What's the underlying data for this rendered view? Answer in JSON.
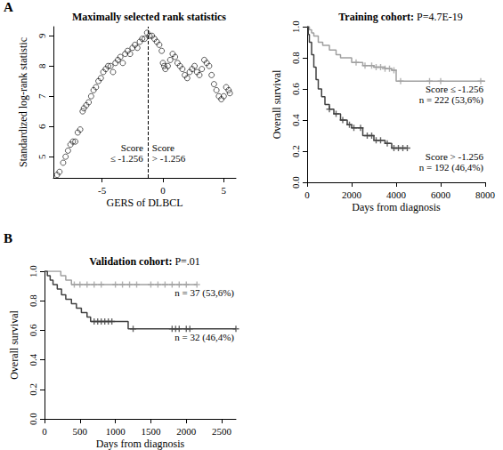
{
  "chart_data": [
    {
      "panel": "A",
      "type": "scatter",
      "title": "Maximally selected rank statistics",
      "x_label": "GERS of DLBCL",
      "y_label": "Standardized log-rank statistic",
      "x": [
        -8.7,
        -8.5,
        -8.2,
        -8.0,
        -7.8,
        -7.6,
        -7.4,
        -7.2,
        -7.0,
        -6.8,
        -6.6,
        -6.5,
        -6.3,
        -6.1,
        -5.9,
        -5.7,
        -5.5,
        -5.3,
        -5.1,
        -4.9,
        -4.7,
        -4.5,
        -4.3,
        -4.1,
        -3.9,
        -3.7,
        -3.5,
        -3.3,
        -3.1,
        -2.9,
        -2.7,
        -2.5,
        -2.3,
        -2.1,
        -1.9,
        -1.7,
        -1.5,
        -1.3,
        -1.1,
        -0.9,
        -0.7,
        -0.5,
        -0.3,
        -0.1,
        0.0,
        0.1,
        0.2,
        0.4,
        0.6,
        0.8,
        1.0,
        1.2,
        1.4,
        1.6,
        1.8,
        2.0,
        2.2,
        2.4,
        2.6,
        2.8,
        3.0,
        3.2,
        3.4,
        3.6,
        3.8,
        4.0,
        4.2,
        4.4,
        4.6,
        4.8,
        5.0,
        5.2,
        5.4,
        5.5
      ],
      "values": [
        4.4,
        4.5,
        4.8,
        5.0,
        5.2,
        5.4,
        5.5,
        5.5,
        5.8,
        5.9,
        6.5,
        6.6,
        6.7,
        6.8,
        7.0,
        7.2,
        7.3,
        7.5,
        7.6,
        7.8,
        7.9,
        8.0,
        8.0,
        7.8,
        8.1,
        8.2,
        8.3,
        8.1,
        8.4,
        8.5,
        8.4,
        8.6,
        8.7,
        8.6,
        8.8,
        8.9,
        8.9,
        9.1,
        9.0,
        9.0,
        8.9,
        8.8,
        8.7,
        8.5,
        8.1,
        8.0,
        7.9,
        8.0,
        8.2,
        8.4,
        8.3,
        8.1,
        8.0,
        7.9,
        7.7,
        7.6,
        7.8,
        7.9,
        8.0,
        7.8,
        7.7,
        7.9,
        8.2,
        8.1,
        8.0,
        7.7,
        7.4,
        7.2,
        7.0,
        6.9,
        7.0,
        7.3,
        7.2,
        7.1
      ],
      "color": "#000000",
      "marker": "circle",
      "xlim": [
        -9,
        6
      ],
      "xticks": [
        -5,
        0,
        5
      ],
      "ylim": [
        4.3,
        9.3
      ],
      "yticks": [
        5,
        6,
        7,
        8,
        9
      ],
      "cutoff": -1.256,
      "annotations": [
        "Score\n≤ -1.256",
        "Score\n> -1.256"
      ]
    },
    {
      "type": "line",
      "title": "Training cohort: P=4.7E-19",
      "x_label": "Days from diagnosis",
      "y_label": "Overall survival",
      "xlim": [
        0,
        8000
      ],
      "xticks": [
        0,
        2000,
        4000,
        6000,
        8000
      ],
      "ylim": [
        0,
        1
      ],
      "yticks": [
        {
          "value": 0,
          "label": "0.0"
        },
        {
          "value": 0.2,
          "label": "0.2"
        },
        {
          "value": 0.4,
          "label": "0.4"
        },
        {
          "value": 0.6,
          "label": "0.6"
        },
        {
          "value": 0.8,
          "label": "0.8"
        },
        {
          "value": 1,
          "label": "1.0"
        }
      ],
      "series": [
        {
          "name": "Score ≤ -1.256\nn = 222 (53,6%)",
          "color": "#a0a0a0",
          "line_style": "step",
          "marker": "cross",
          "x": [
            0,
            100,
            200,
            300,
            500,
            700,
            1000,
            1300,
            1500,
            2000,
            2500,
            3000,
            3500,
            3800,
            4000,
            8000
          ],
          "values": [
            1,
            0.98,
            0.96,
            0.94,
            0.9,
            0.88,
            0.85,
            0.82,
            0.8,
            0.77,
            0.75,
            0.74,
            0.73,
            0.72,
            0.65,
            0.65
          ],
          "censored_x": [
            2200,
            2600,
            2900,
            3100,
            3300,
            3500,
            3700,
            3900,
            4200,
            5500,
            6000,
            7800
          ],
          "censored_y": [
            0.77,
            0.75,
            0.75,
            0.74,
            0.74,
            0.73,
            0.73,
            0.72,
            0.65,
            0.65,
            0.65,
            0.65
          ]
        },
        {
          "name": "Score > -1.256\nn = 192 (46,4%)",
          "color": "#404040",
          "line_style": "step",
          "marker": "cross",
          "x": [
            0,
            50,
            100,
            200,
            300,
            400,
            500,
            650,
            800,
            1000,
            1200,
            1500,
            1800,
            2000,
            2500,
            3000,
            3500,
            3800,
            4500
          ],
          "values": [
            1,
            0.95,
            0.9,
            0.82,
            0.74,
            0.66,
            0.6,
            0.55,
            0.5,
            0.47,
            0.44,
            0.4,
            0.37,
            0.35,
            0.3,
            0.27,
            0.25,
            0.22,
            0.22
          ],
          "censored_x": [
            1000,
            1300,
            1600,
            1900,
            2100,
            2400,
            2700,
            2900,
            3100,
            3300,
            3600,
            3900,
            4100,
            4300,
            4500
          ],
          "censored_y": [
            0.47,
            0.44,
            0.4,
            0.37,
            0.35,
            0.35,
            0.3,
            0.3,
            0.27,
            0.27,
            0.25,
            0.22,
            0.22,
            0.22,
            0.22
          ]
        }
      ]
    },
    {
      "panel": "B",
      "type": "line",
      "title": "Validation cohort: P=.01",
      "x_label": "Days from diagnosis",
      "y_label": "Overall survival",
      "xlim": [
        0,
        2700
      ],
      "xticks": [
        0,
        500,
        1000,
        1500,
        2000,
        2500
      ],
      "ylim": [
        0,
        1
      ],
      "yticks": [
        {
          "value": 0,
          "label": "0.0"
        },
        {
          "value": 0.2,
          "label": "0.2"
        },
        {
          "value": 0.4,
          "label": "0.4"
        },
        {
          "value": 0.6,
          "label": "0.6"
        },
        {
          "value": 0.8,
          "label": "0.8"
        },
        {
          "value": 1,
          "label": "1.0"
        }
      ],
      "series": [
        {
          "name": "n = 37 (53,6%)",
          "color": "#a0a0a0",
          "line_style": "step",
          "marker": "cross",
          "x": [
            0,
            230,
            300,
            380,
            2150
          ],
          "values": [
            1,
            0.97,
            0.94,
            0.91,
            0.91
          ],
          "censored_x": [
            420,
            500,
            600,
            700,
            800,
            1000,
            1100,
            1200,
            1300,
            1500,
            1600,
            1700,
            1800,
            1900,
            2000,
            2150
          ],
          "censored_y": [
            0.91,
            0.91,
            0.91,
            0.91,
            0.91,
            0.91,
            0.91,
            0.91,
            0.91,
            0.91,
            0.91,
            0.91,
            0.91,
            0.91,
            0.91,
            0.91
          ]
        },
        {
          "name": "n = 32 (46,4%)",
          "color": "#404040",
          "line_style": "step",
          "marker": "cross",
          "x": [
            0,
            40,
            80,
            120,
            180,
            240,
            300,
            380,
            450,
            520,
            600,
            650,
            1180,
            2700
          ],
          "values": [
            1,
            0.97,
            0.94,
            0.91,
            0.88,
            0.84,
            0.81,
            0.78,
            0.75,
            0.72,
            0.69,
            0.66,
            0.61,
            0.61
          ],
          "censored_x": [
            700,
            750,
            800,
            850,
            900,
            950,
            1250,
            1800,
            1850,
            1900,
            2000,
            2050,
            2700
          ],
          "censored_y": [
            0.66,
            0.66,
            0.66,
            0.66,
            0.66,
            0.66,
            0.61,
            0.61,
            0.61,
            0.61,
            0.61,
            0.61,
            0.61
          ]
        }
      ]
    }
  ]
}
